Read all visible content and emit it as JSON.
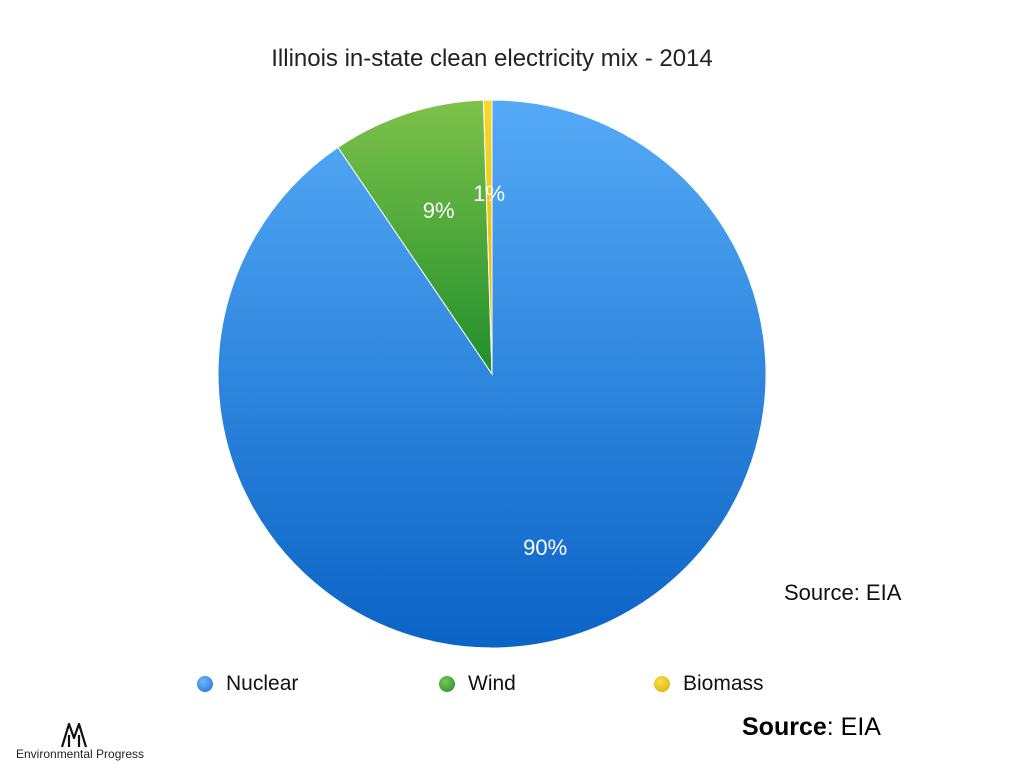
{
  "title": "Illinois in-state clean electricity mix - 2014",
  "source_inline": "Source: EIA",
  "source_footer": {
    "label": "Source",
    "rest": ": EIA"
  },
  "logo": {
    "text": "Environmental Progress",
    "icon": "trees-icon"
  },
  "colors": {
    "Nuclear": "#2f86e0",
    "Wind": "#2e9e35",
    "Biomass": "#f0c419"
  },
  "chart_data": {
    "type": "pie",
    "title": "Illinois in-state clean electricity mix - 2014",
    "categories": [
      "Nuclear",
      "Wind",
      "Biomass"
    ],
    "values": [
      90.5,
      9.0,
      0.5
    ],
    "labels": [
      "90%",
      "9%",
      "1%"
    ],
    "legend": "bottom",
    "start": "12 o'clock, clockwise"
  }
}
